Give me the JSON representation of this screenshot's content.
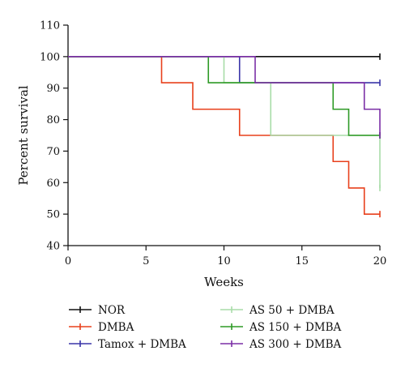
{
  "chart_data": {
    "type": "line",
    "subtype": "kaplan-meier survival curve",
    "xlabel": "Weeks",
    "ylabel": "Percent survival",
    "xlim": [
      0,
      20
    ],
    "ylim": [
      40,
      110
    ],
    "xticks": [
      0,
      5,
      10,
      15,
      20
    ],
    "yticks": [
      40,
      50,
      60,
      70,
      80,
      90,
      100,
      110
    ],
    "grid": false,
    "legend_position": "bottom",
    "series": [
      {
        "name": "NOR",
        "color": "#111111",
        "steps": [
          [
            0,
            100
          ],
          [
            20,
            100
          ]
        ],
        "censored": [
          [
            20,
            100
          ]
        ]
      },
      {
        "name": "DMBA",
        "color": "#e8401c",
        "steps": [
          [
            0,
            100
          ],
          [
            6,
            91.7
          ],
          [
            8,
            83.3
          ],
          [
            11,
            75
          ],
          [
            17,
            66.7
          ],
          [
            18,
            58.3
          ],
          [
            19,
            50
          ],
          [
            20,
            50
          ]
        ],
        "censored": [
          [
            20,
            50
          ]
        ]
      },
      {
        "name": "Tamox + DMBA",
        "color": "#3a35a8",
        "steps": [
          [
            0,
            100
          ],
          [
            11,
            91.7
          ],
          [
            20,
            91.7
          ]
        ],
        "censored": [
          [
            20,
            91.7
          ]
        ]
      },
      {
        "name": "AS 50 + DMBA",
        "color": "#a8dca8",
        "steps": [
          [
            0,
            100
          ],
          [
            10,
            91.7
          ],
          [
            13,
            75
          ],
          [
            20,
            75
          ],
          [
            20,
            58.3
          ]
        ],
        "censored": [
          [
            20,
            58.3
          ]
        ]
      },
      {
        "name": "AS 150 + DMBA",
        "color": "#2e9a26",
        "steps": [
          [
            0,
            100
          ],
          [
            9,
            91.7
          ],
          [
            17,
            83.3
          ],
          [
            18,
            75
          ],
          [
            20,
            75
          ]
        ],
        "censored": [
          [
            20,
            75
          ]
        ]
      },
      {
        "name": "AS 300 + DMBA",
        "color": "#7b2fa6",
        "steps": [
          [
            0,
            100
          ],
          [
            12,
            91.7
          ],
          [
            19,
            83.3
          ],
          [
            20,
            75
          ]
        ],
        "censored": [
          [
            20,
            75
          ]
        ]
      }
    ]
  }
}
